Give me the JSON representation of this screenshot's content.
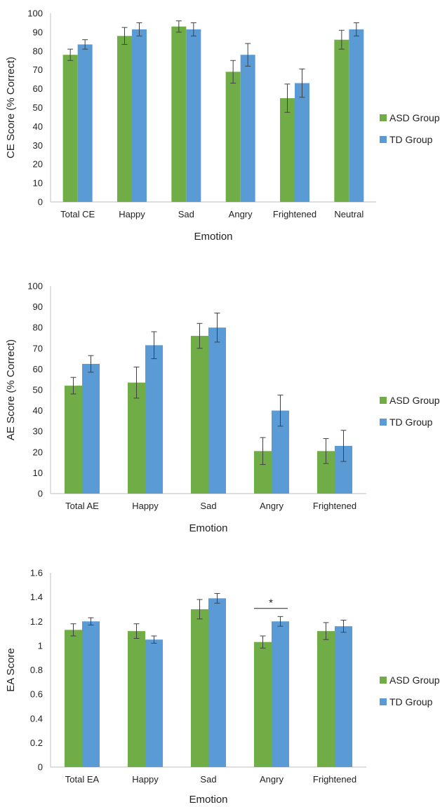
{
  "chart_data": [
    {
      "type": "bar",
      "categories": [
        "Total CE",
        "Happy",
        "Sad",
        "Angry",
        "Frightened",
        "Neutral"
      ],
      "series": [
        {
          "name": "ASD Group",
          "color": "#70ad47",
          "values": [
            78,
            88,
            93,
            69,
            55,
            86
          ],
          "error": [
            3,
            4.5,
            3,
            6,
            7.5,
            5
          ]
        },
        {
          "name": "TD Group",
          "color": "#5b9bd5",
          "values": [
            83.5,
            91.5,
            91.5,
            78,
            63,
            91.5
          ],
          "error": [
            2.5,
            3.5,
            3.5,
            6,
            7.5,
            3.5
          ]
        }
      ],
      "xlabel": "Emotion",
      "ylabel": "CE Score (% Correct)",
      "ylim": [
        0,
        100
      ],
      "yticks": [
        "0",
        "10",
        "20",
        "30",
        "40",
        "50",
        "60",
        "70",
        "80",
        "90",
        "100"
      ],
      "legend": "right",
      "grid": false,
      "annotations": []
    },
    {
      "type": "bar",
      "categories": [
        "Total AE",
        "Happy",
        "Sad",
        "Angry",
        "Frightened"
      ],
      "series": [
        {
          "name": "ASD Group",
          "color": "#70ad47",
          "values": [
            52,
            53.5,
            76,
            20.5,
            20.5
          ],
          "error": [
            4,
            7.5,
            6,
            6.5,
            6
          ]
        },
        {
          "name": "TD Group",
          "color": "#5b9bd5",
          "values": [
            62.5,
            71.5,
            80,
            40,
            23
          ],
          "error": [
            4,
            6.5,
            7,
            7.5,
            7.5
          ]
        }
      ],
      "xlabel": "Emotion",
      "ylabel": "AE Score (% Correct)",
      "ylim": [
        0,
        100
      ],
      "yticks": [
        "0",
        "10",
        "20",
        "30",
        "40",
        "50",
        "60",
        "70",
        "80",
        "90",
        "100"
      ],
      "legend": "right",
      "grid": false,
      "annotations": []
    },
    {
      "type": "bar",
      "categories": [
        "Total EA",
        "Happy",
        "Sad",
        "Angry",
        "Frightened"
      ],
      "series": [
        {
          "name": "ASD Group",
          "color": "#70ad47",
          "values": [
            1.13,
            1.12,
            1.3,
            1.03,
            1.12
          ],
          "error": [
            0.05,
            0.06,
            0.08,
            0.05,
            0.07
          ]
        },
        {
          "name": "TD Group",
          "color": "#5b9bd5",
          "values": [
            1.2,
            1.05,
            1.39,
            1.2,
            1.16
          ],
          "error": [
            0.03,
            0.03,
            0.04,
            0.04,
            0.05
          ]
        }
      ],
      "xlabel": "Emotion",
      "ylabel": "EA Score",
      "ylim": [
        0,
        1.6
      ],
      "yticks": [
        "0",
        "0.2",
        "0.4",
        "0.6",
        "0.8",
        "1",
        "1.2",
        "1.4",
        "1.6"
      ],
      "legend": "right",
      "grid": false,
      "annotations": [
        {
          "text": "*",
          "category": "Angry",
          "y": 1.33
        }
      ]
    }
  ]
}
